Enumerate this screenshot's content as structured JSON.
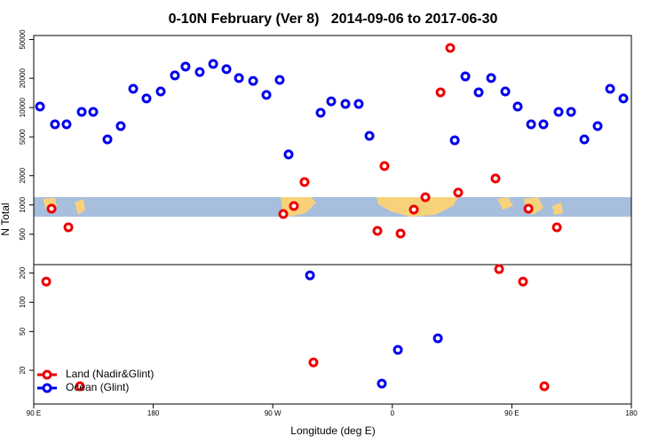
{
  "chart_data": {
    "type": "scatter",
    "title": "0-10N February (Ver 8)   2014-09-06 to 2017-06-30",
    "x_label": "Longitude (deg E)",
    "y_label": "N Total",
    "log_y": true,
    "legend": "bottom-left",
    "xlim": [
      90,
      540
    ],
    "xticks": [
      {
        "value": 90,
        "label": "90 E"
      },
      {
        "value": 180,
        "label": "180"
      },
      {
        "value": 270,
        "label": "90 W"
      },
      {
        "value": 360,
        "label": "0"
      },
      {
        "value": 450,
        "label": "90 E"
      },
      {
        "value": 540,
        "label": "180"
      }
    ],
    "ylim": [
      9,
      55000
    ],
    "yticks": [
      20,
      50,
      100,
      200,
      500,
      1000,
      2000,
      5000,
      10000,
      20000,
      50000
    ],
    "series": [
      {
        "name": "Land (Nadir&Glint)",
        "color": "#ee0000",
        "x": [
          99.4,
          103.4,
          116.1,
          124.8,
          277.9,
          285.9,
          293.9,
          300.6,
          348.8,
          354.1,
          366.2,
          376.2,
          384.9,
          396.3,
          403.6,
          409.6,
          437.7,
          440.4,
          458.4,
          462.5,
          474.5,
          483.9
        ],
        "values": [
          163,
          915,
          589,
          13.7,
          807,
          975,
          1720,
          24.1,
          541,
          2510,
          508,
          896,
          1200,
          14350,
          41000,
          1340,
          1870,
          219,
          163,
          915,
          13.7,
          589
        ]
      },
      {
        "name": "Ocean (Glint)",
        "color": "#0000ee",
        "x": [
          94.7,
          106,
          114.7,
          126.1,
          134.8,
          145.5,
          155.5,
          164.9,
          174.9,
          185.6,
          196.3,
          204.3,
          215,
          225.1,
          235.1,
          244.5,
          255.2,
          265.2,
          275.2,
          281.9,
          298,
          306,
          314,
          324.7,
          334.7,
          342.8,
          352.1,
          364.2,
          394.3,
          407,
          415,
          425,
          434.4,
          445.1,
          454.4,
          464.5,
          473.8,
          485.2,
          494.6,
          504.6,
          514.6,
          524,
          534
        ],
        "values": [
          10250,
          6730,
          6730,
          9040,
          9040,
          4710,
          6450,
          15600,
          12400,
          14650,
          21400,
          26400,
          23200,
          28100,
          24800,
          20100,
          18800,
          13500,
          19250,
          3300,
          189,
          8850,
          11600,
          10900,
          10900,
          5120,
          14.6,
          32.4,
          42.6,
          4610,
          20900,
          14350,
          20100,
          14650,
          10250,
          6730,
          6730,
          9040,
          9040,
          4710,
          6450,
          15600,
          12400
        ]
      }
    ]
  }
}
